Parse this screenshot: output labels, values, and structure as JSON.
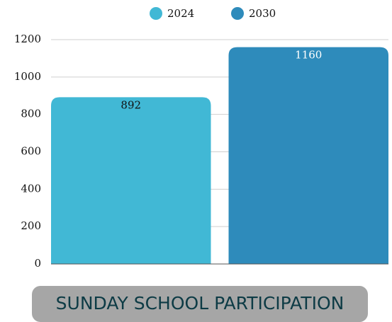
{
  "chart_data": {
    "type": "bar",
    "title": "SUNDAY SCHOOL PARTICIPATION",
    "categories": [
      null
    ],
    "series": [
      {
        "name": "2024",
        "color": "#41b8d5",
        "values": [
          892
        ]
      },
      {
        "name": "2030",
        "color": "#2e8bbb",
        "values": [
          1160
        ]
      }
    ],
    "ylim": [
      0,
      1200
    ],
    "yticks": [
      0,
      200,
      400,
      600,
      800,
      1000,
      1200
    ],
    "grid": true,
    "legend": "top"
  }
}
